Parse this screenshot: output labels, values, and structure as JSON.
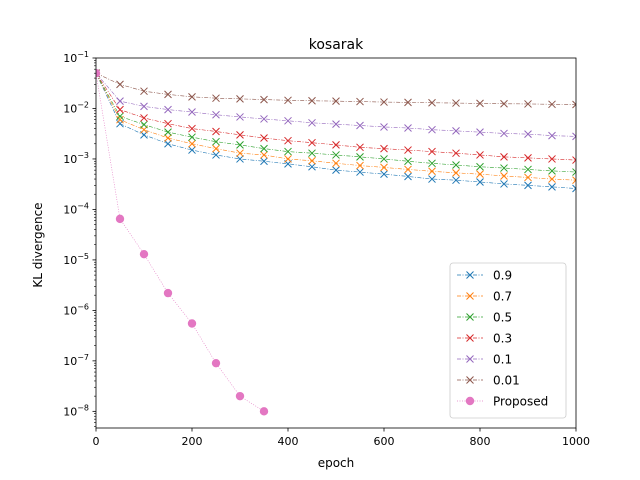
{
  "chart_data": {
    "type": "line",
    "title": "kosarak",
    "xlabel": "epoch",
    "ylabel": "KL divergence",
    "yscale": "log",
    "xlim": [
      0,
      1000
    ],
    "ylim_exponent": [
      -8.33,
      -1.0
    ],
    "x_ticks": [
      0,
      200,
      400,
      600,
      800,
      1000
    ],
    "y_ticks": [
      -8,
      -7,
      -6,
      -5,
      -4,
      -3,
      -2,
      -1
    ],
    "grid": false,
    "legend_position": "lower-right",
    "series": [
      {
        "name": "0.9",
        "color": "#1f77b4",
        "marker": "x",
        "line": "dash-dot",
        "x": [
          0,
          50,
          100,
          150,
          200,
          250,
          300,
          350,
          400,
          450,
          500,
          550,
          600,
          650,
          700,
          750,
          800,
          850,
          900,
          950,
          1000
        ],
        "y": [
          0.05,
          0.005,
          0.003,
          0.002,
          0.0015,
          0.0012,
          0.001,
          0.0009,
          0.0008,
          0.0007,
          0.0006,
          0.00055,
          0.0005,
          0.00045,
          0.0004,
          0.00038,
          0.00035,
          0.00032,
          0.0003,
          0.00028,
          0.00026
        ]
      },
      {
        "name": "0.7",
        "color": "#ff7f0e",
        "marker": "x",
        "line": "dash-dot",
        "x": [
          0,
          50,
          100,
          150,
          200,
          250,
          300,
          350,
          400,
          450,
          500,
          550,
          600,
          650,
          700,
          750,
          800,
          850,
          900,
          950,
          1000
        ],
        "y": [
          0.05,
          0.006,
          0.0038,
          0.0026,
          0.002,
          0.0016,
          0.0013,
          0.0012,
          0.001,
          0.00092,
          0.00082,
          0.00074,
          0.00068,
          0.00062,
          0.00057,
          0.00053,
          0.0005,
          0.00046,
          0.00043,
          0.0004,
          0.00038
        ]
      },
      {
        "name": "0.5",
        "color": "#2ca02c",
        "marker": "x",
        "line": "dash-dot",
        "x": [
          0,
          50,
          100,
          150,
          200,
          250,
          300,
          350,
          400,
          450,
          500,
          550,
          600,
          650,
          700,
          750,
          800,
          850,
          900,
          950,
          1000
        ],
        "y": [
          0.05,
          0.007,
          0.0048,
          0.0034,
          0.0027,
          0.0022,
          0.0019,
          0.0016,
          0.0014,
          0.0013,
          0.0012,
          0.0011,
          0.001,
          0.0009,
          0.00082,
          0.00076,
          0.0007,
          0.00066,
          0.00062,
          0.00058,
          0.00055
        ]
      },
      {
        "name": "0.3",
        "color": "#d62728",
        "marker": "x",
        "line": "dash-dot",
        "x": [
          0,
          50,
          100,
          150,
          200,
          250,
          300,
          350,
          400,
          450,
          500,
          550,
          600,
          650,
          700,
          750,
          800,
          850,
          900,
          950,
          1000
        ],
        "y": [
          0.05,
          0.0095,
          0.0065,
          0.005,
          0.004,
          0.0035,
          0.003,
          0.0026,
          0.0023,
          0.0021,
          0.0019,
          0.0017,
          0.0016,
          0.0015,
          0.0014,
          0.0013,
          0.0012,
          0.0011,
          0.00105,
          0.001,
          0.00095
        ]
      },
      {
        "name": "0.1",
        "color": "#9467bd",
        "marker": "x",
        "line": "dash-dot",
        "x": [
          0,
          50,
          100,
          150,
          200,
          250,
          300,
          350,
          400,
          450,
          500,
          550,
          600,
          650,
          700,
          750,
          800,
          850,
          900,
          950,
          1000
        ],
        "y": [
          0.05,
          0.014,
          0.011,
          0.0095,
          0.0085,
          0.0075,
          0.0068,
          0.0062,
          0.0057,
          0.0052,
          0.0049,
          0.0046,
          0.0043,
          0.0041,
          0.0038,
          0.0036,
          0.0034,
          0.0032,
          0.0031,
          0.0029,
          0.0028
        ]
      },
      {
        "name": "0.01",
        "color": "#8c564b",
        "marker": "x",
        "line": "dash-dot",
        "x": [
          0,
          50,
          100,
          150,
          200,
          250,
          300,
          350,
          400,
          450,
          500,
          550,
          600,
          650,
          700,
          750,
          800,
          850,
          900,
          950,
          1000
        ],
        "y": [
          0.05,
          0.03,
          0.022,
          0.019,
          0.017,
          0.016,
          0.0155,
          0.015,
          0.0145,
          0.0142,
          0.014,
          0.0137,
          0.0134,
          0.0132,
          0.013,
          0.0128,
          0.0126,
          0.0124,
          0.0123,
          0.0121,
          0.012
        ]
      },
      {
        "name": "Proposed",
        "color": "#e377c2",
        "marker": "o",
        "line": "dotted",
        "x": [
          0,
          50,
          100,
          150,
          200,
          250,
          300,
          350
        ],
        "y": [
          0.05,
          6.5e-05,
          1.3e-05,
          2.2e-06,
          5.5e-07,
          9e-08,
          2e-08,
          1e-08
        ]
      }
    ]
  }
}
